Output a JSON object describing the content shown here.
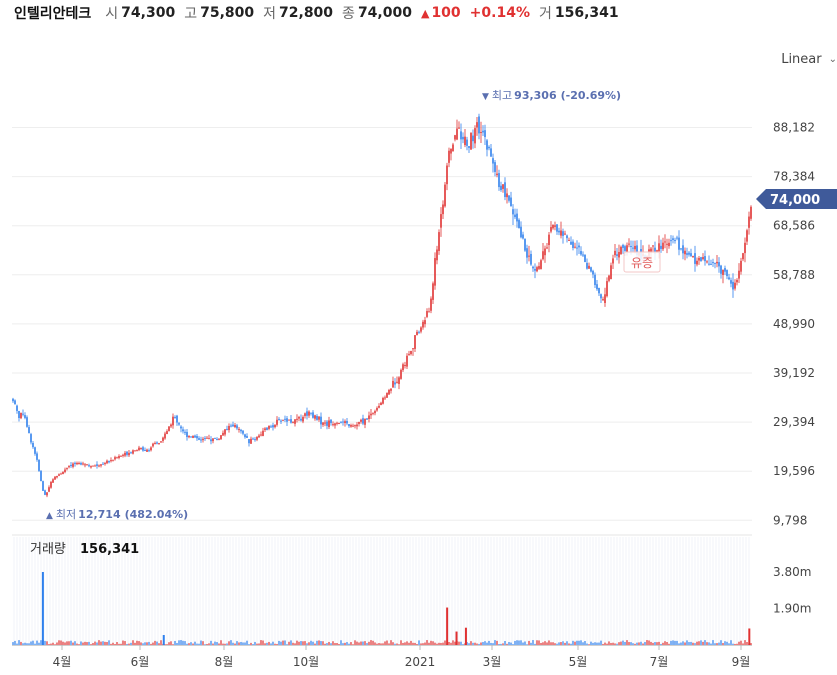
{
  "header": {
    "name": "인텔리안테크",
    "open_label": "시",
    "open": "74,300",
    "high_label": "고",
    "high": "75,800",
    "low_label": "저",
    "low": "72,800",
    "close_label": "종",
    "close": "74,000",
    "change_arrow": "▲",
    "change": "100",
    "change_pct": "+0.14%",
    "volume_label": "거",
    "volume": "156,341"
  },
  "scale_toggle": {
    "label": "Linear",
    "icon": "chevron-down-icon"
  },
  "chart_data": {
    "type": "candlestick",
    "price_axis_ticks": [
      "88,182",
      "78,384",
      "68,586",
      "58,788",
      "48,990",
      "39,192",
      "29,394",
      "19,596",
      "9,798"
    ],
    "price_axis_values": [
      88182,
      78384,
      68586,
      58788,
      48990,
      39192,
      29394,
      19596,
      9798
    ],
    "volume_axis_ticks": [
      "3.80m",
      "1.90m"
    ],
    "volume_axis_values": [
      3800000,
      1900000
    ],
    "x_ticks": [
      "4월",
      "6월",
      "8월",
      "10월",
      "2021",
      "3월",
      "5월",
      "7월",
      "9월"
    ],
    "current_price_label": "74,000",
    "max_annotation": {
      "arrow": "▼",
      "label": "최고",
      "value": "93,306",
      "pct": "(-20.69%)"
    },
    "min_annotation": {
      "arrow": "▲",
      "label": "최저",
      "value": "12,714",
      "pct": "(482.04%)"
    },
    "event_label": "유증",
    "volume_title": "거래량",
    "volume_value": "156,341",
    "colors": {
      "up": "#e03131",
      "down": "#2f80ed",
      "annotation": "#5a6fb0",
      "current_tag": "#3f5a9a",
      "grid": "#eeeeee"
    },
    "price_path": [
      [
        "2020-03-02",
        34000
      ],
      [
        "2020-03-06",
        30500
      ],
      [
        "2020-03-10",
        31500
      ],
      [
        "2020-03-13",
        27500
      ],
      [
        "2020-03-19",
        22500
      ],
      [
        "2020-03-23",
        17000
      ],
      [
        "2020-03-25",
        14500
      ],
      [
        "2020-03-31",
        18000
      ],
      [
        "2020-04-10",
        20000
      ],
      [
        "2020-04-20",
        21500
      ],
      [
        "2020-05-01",
        20500
      ],
      [
        "2020-05-15",
        22000
      ],
      [
        "2020-06-01",
        24000
      ],
      [
        "2020-06-10",
        24000
      ],
      [
        "2020-06-20",
        25500
      ],
      [
        "2020-06-30",
        30500
      ],
      [
        "2020-07-08",
        27000
      ],
      [
        "2020-07-20",
        26000
      ],
      [
        "2020-08-01",
        26000
      ],
      [
        "2020-08-12",
        29000
      ],
      [
        "2020-08-25",
        25500
      ],
      [
        "2020-09-07",
        28000
      ],
      [
        "2020-09-18",
        30000
      ],
      [
        "2020-09-28",
        29500
      ],
      [
        "2020-10-08",
        31500
      ],
      [
        "2020-10-20",
        29000
      ],
      [
        "2020-10-30",
        29500
      ],
      [
        "2020-11-10",
        28500
      ],
      [
        "2020-11-20",
        30000
      ],
      [
        "2020-11-30",
        33000
      ],
      [
        "2020-12-10",
        37000
      ],
      [
        "2020-12-18",
        41000
      ],
      [
        "2020-12-28",
        47000
      ],
      [
        "2021-01-06",
        52000
      ],
      [
        "2021-01-14",
        70000
      ],
      [
        "2021-01-20",
        82000
      ],
      [
        "2021-01-27",
        88500
      ],
      [
        "2021-02-03",
        84000
      ],
      [
        "2021-02-10",
        88000
      ],
      [
        "2021-02-16",
        86000
      ],
      [
        "2021-02-25",
        78000
      ],
      [
        "2021-03-08",
        72000
      ],
      [
        "2021-03-18",
        64000
      ],
      [
        "2021-03-25",
        59000
      ],
      [
        "2021-04-01",
        63000
      ],
      [
        "2021-04-08",
        68500
      ],
      [
        "2021-04-19",
        66000
      ],
      [
        "2021-04-29",
        63000
      ],
      [
        "2021-05-10",
        57000
      ],
      [
        "2021-05-14",
        53000
      ],
      [
        "2021-05-24",
        63000
      ],
      [
        "2021-06-01",
        64500
      ],
      [
        "2021-06-14",
        63000
      ],
      [
        "2021-06-24",
        64000
      ],
      [
        "2021-07-06",
        66500
      ],
      [
        "2021-07-16",
        62500
      ],
      [
        "2021-07-26",
        62000
      ],
      [
        "2021-08-05",
        61000
      ],
      [
        "2021-08-16",
        59000
      ],
      [
        "2021-08-20",
        56000
      ],
      [
        "2021-08-27",
        62000
      ],
      [
        "2021-08-31",
        69500
      ],
      [
        "2021-09-03",
        74000
      ]
    ],
    "volume_spikes": [
      [
        "2020-03-24",
        3800000
      ],
      [
        "2021-01-19",
        1950000
      ],
      [
        "2021-09-01",
        860000
      ],
      [
        "2021-02-02",
        900000
      ],
      [
        "2021-01-26",
        700000
      ],
      [
        "2020-06-22",
        520000
      ]
    ]
  }
}
